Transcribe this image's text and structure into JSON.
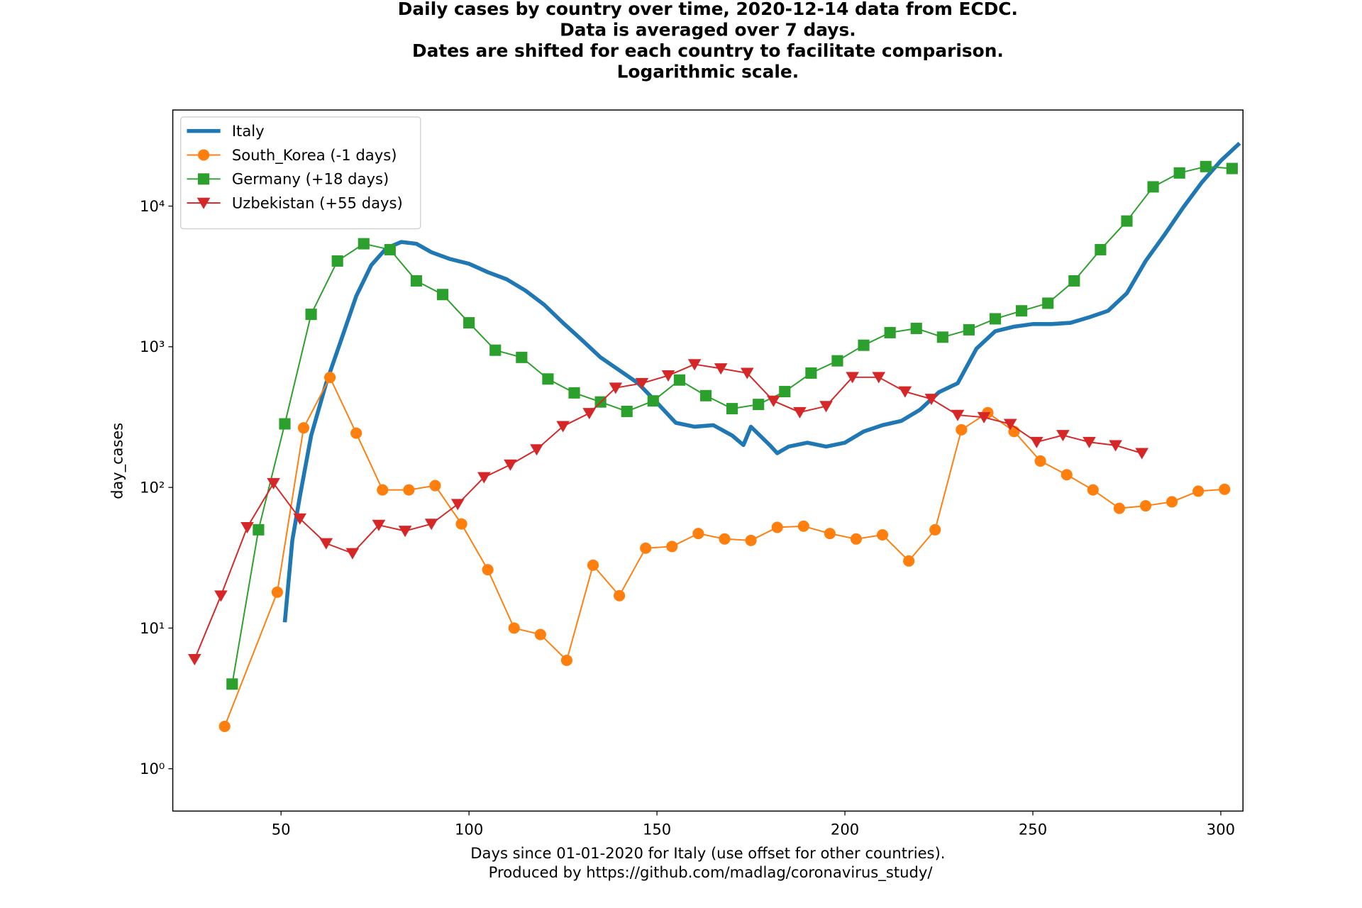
{
  "chart_data": {
    "type": "line",
    "title": [
      "Daily cases by country over time, 2020-12-14 data from ECDC.",
      "Data is averaged over 7 days.",
      "Dates are shifted for each country to facilitate comparison.",
      "Logarithmic scale."
    ],
    "xlabel": [
      "Days since 01-01-2020 for Italy (use offset for other countries).",
      "Produced by https://github.com/madlag/coronavirus_study/"
    ],
    "ylabel": "day_cases",
    "xlim": [
      21.2,
      305.9
    ],
    "ylim": [
      0.5,
      48200
    ],
    "xticks": [
      50,
      100,
      150,
      200,
      250,
      300
    ],
    "yticks": [
      {
        "value": 1,
        "label": "10⁰"
      },
      {
        "value": 10,
        "label": "10¹"
      },
      {
        "value": 100,
        "label": "10²"
      },
      {
        "value": 1000,
        "label": "10³"
      },
      {
        "value": 10000,
        "label": "10⁴"
      }
    ],
    "log_y": true,
    "legend": "upper left",
    "series": [
      {
        "name": "Italy",
        "color": "#1f77b4",
        "marker": "none",
        "x": [
          51,
          53,
          55,
          58,
          62,
          66,
          70,
          74,
          78,
          82,
          86,
          90,
          95,
          100,
          105,
          110,
          115,
          120,
          125,
          130,
          135,
          140,
          145,
          150,
          155,
          160,
          165,
          170,
          173,
          175,
          180,
          182,
          185,
          190,
          195,
          200,
          205,
          210,
          215,
          220,
          225,
          230,
          235,
          240,
          245,
          250,
          255,
          260,
          265,
          270,
          275,
          280,
          285,
          290,
          295,
          300,
          305
        ],
        "values": [
          11,
          42,
          86,
          233,
          550,
          1120,
          2290,
          3800,
          5010,
          5560,
          5400,
          4700,
          4200,
          3890,
          3390,
          3020,
          2510,
          1990,
          1480,
          1120,
          840,
          680,
          550,
          400,
          288,
          270,
          277,
          234,
          200,
          270,
          200,
          175,
          195,
          208,
          195,
          208,
          250,
          277,
          297,
          357,
          475,
          550,
          970,
          1290,
          1390,
          1450,
          1450,
          1480,
          1620,
          1800,
          2400,
          4070,
          6240,
          9780,
          14800,
          21000,
          28000
        ]
      },
      {
        "name": "South_Korea (-1 days)",
        "color": "#ff7f0e",
        "marker": "circle",
        "x": [
          35,
          49,
          56,
          63,
          70,
          77,
          84,
          91,
          98,
          105,
          112,
          119,
          126,
          133,
          140,
          147,
          154,
          161,
          168,
          175,
          182,
          189,
          196,
          203,
          210,
          217,
          224,
          231,
          238,
          245,
          252,
          259,
          266,
          273,
          280,
          287,
          294,
          301
        ],
        "values": [
          2,
          18,
          265,
          605,
          243,
          96,
          96,
          103,
          55,
          26,
          10,
          9,
          5.9,
          28,
          17,
          37,
          38,
          47,
          43,
          42,
          52,
          53,
          47,
          43,
          46,
          30,
          50,
          257,
          340,
          250,
          154,
          123,
          96,
          71,
          74,
          79,
          94,
          97
        ]
      },
      {
        "name": "Germany (+18 days)",
        "color": "#2ca02c",
        "marker": "square",
        "x": [
          37,
          44,
          51,
          58,
          65,
          72,
          79,
          86,
          93,
          100,
          107,
          114,
          121,
          128,
          135,
          142,
          149,
          156,
          163,
          170,
          177,
          184,
          191,
          198,
          205,
          212,
          219,
          226,
          233,
          240,
          247,
          254,
          261,
          268,
          275,
          282,
          289,
          296,
          303
        ],
        "values": [
          4,
          50,
          283,
          1700,
          4070,
          5400,
          4900,
          2940,
          2350,
          1480,
          945,
          840,
          590,
          470,
          405,
          347,
          412,
          580,
          449,
          363,
          389,
          480,
          650,
          794,
          1025,
          1260,
          1350,
          1170,
          1320,
          1580,
          1800,
          2040,
          2940,
          4900,
          7830,
          13700,
          17200,
          19100,
          18500
        ]
      },
      {
        "name": "Uzbekistan (+55 days)",
        "color": "#d62728",
        "marker": "triangle-down",
        "x": [
          27,
          34,
          41,
          48,
          55,
          62,
          69,
          76,
          83,
          90,
          97,
          104,
          111,
          118,
          125,
          132,
          139,
          146,
          153,
          160,
          167,
          174,
          181,
          188,
          195,
          202,
          209,
          216,
          223,
          230,
          237,
          244,
          251,
          258,
          265,
          272,
          279
        ],
        "values": [
          6,
          17,
          52,
          107,
          60,
          40,
          34,
          54,
          49,
          55,
          76,
          118,
          145,
          186,
          272,
          337,
          510,
          550,
          624,
          750,
          700,
          650,
          412,
          342,
          378,
          607,
          607,
          480,
          425,
          327,
          315,
          282,
          210,
          235,
          210,
          199,
          175
        ]
      }
    ]
  }
}
